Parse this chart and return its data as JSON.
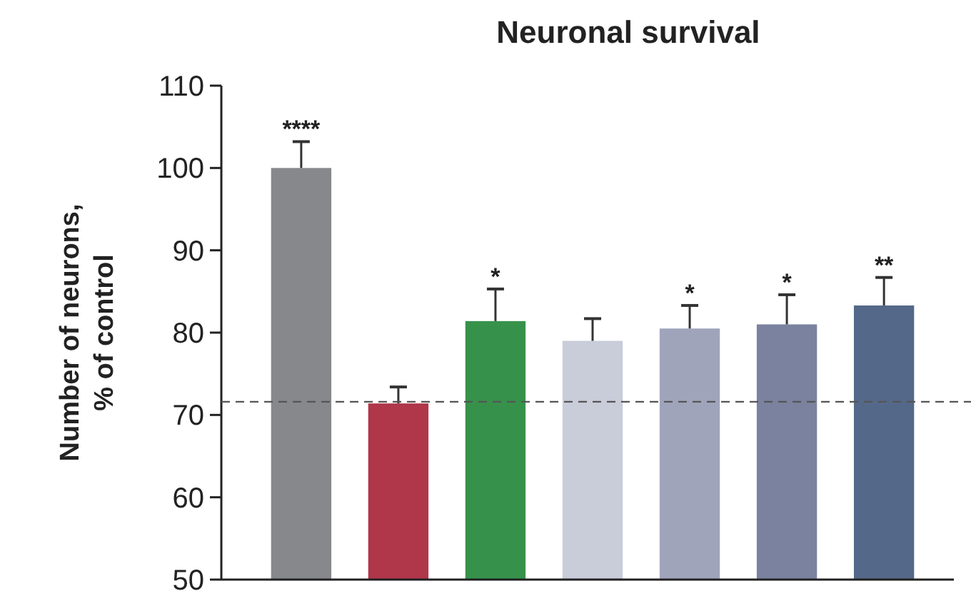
{
  "chart_data": {
    "type": "bar",
    "title": "Neuronal survival",
    "ylabel": "Number of neurons,\n% of control",
    "categories": [
      null,
      null,
      null,
      null,
      null,
      null,
      null
    ],
    "values": [
      100,
      71.4,
      81.4,
      79,
      80.5,
      81,
      83.3
    ],
    "colors": [
      "#87888c",
      "#b0364a",
      "#36924a",
      "#c9ccd9",
      "#a0a4bb",
      "#7a829f",
      "#546889"
    ],
    "errors": [
      [
        100,
        103.2
      ],
      [
        71.4,
        73.4
      ],
      [
        81.4,
        85.3
      ],
      [
        79,
        81.7
      ],
      [
        80.5,
        83.3
      ],
      [
        81,
        84.6
      ],
      [
        83.3,
        86.7
      ]
    ],
    "value_labels": [
      "****",
      null,
      "*",
      null,
      "*",
      "*",
      "**"
    ],
    "ylim": [
      50,
      110
    ],
    "yticks": [
      50,
      60,
      70,
      80,
      90,
      100,
      110
    ],
    "ref_lines": [
      {
        "axis": "y",
        "value": 71.6,
        "color": "#555555",
        "line_style": "dashed"
      }
    ],
    "grid": false
  }
}
